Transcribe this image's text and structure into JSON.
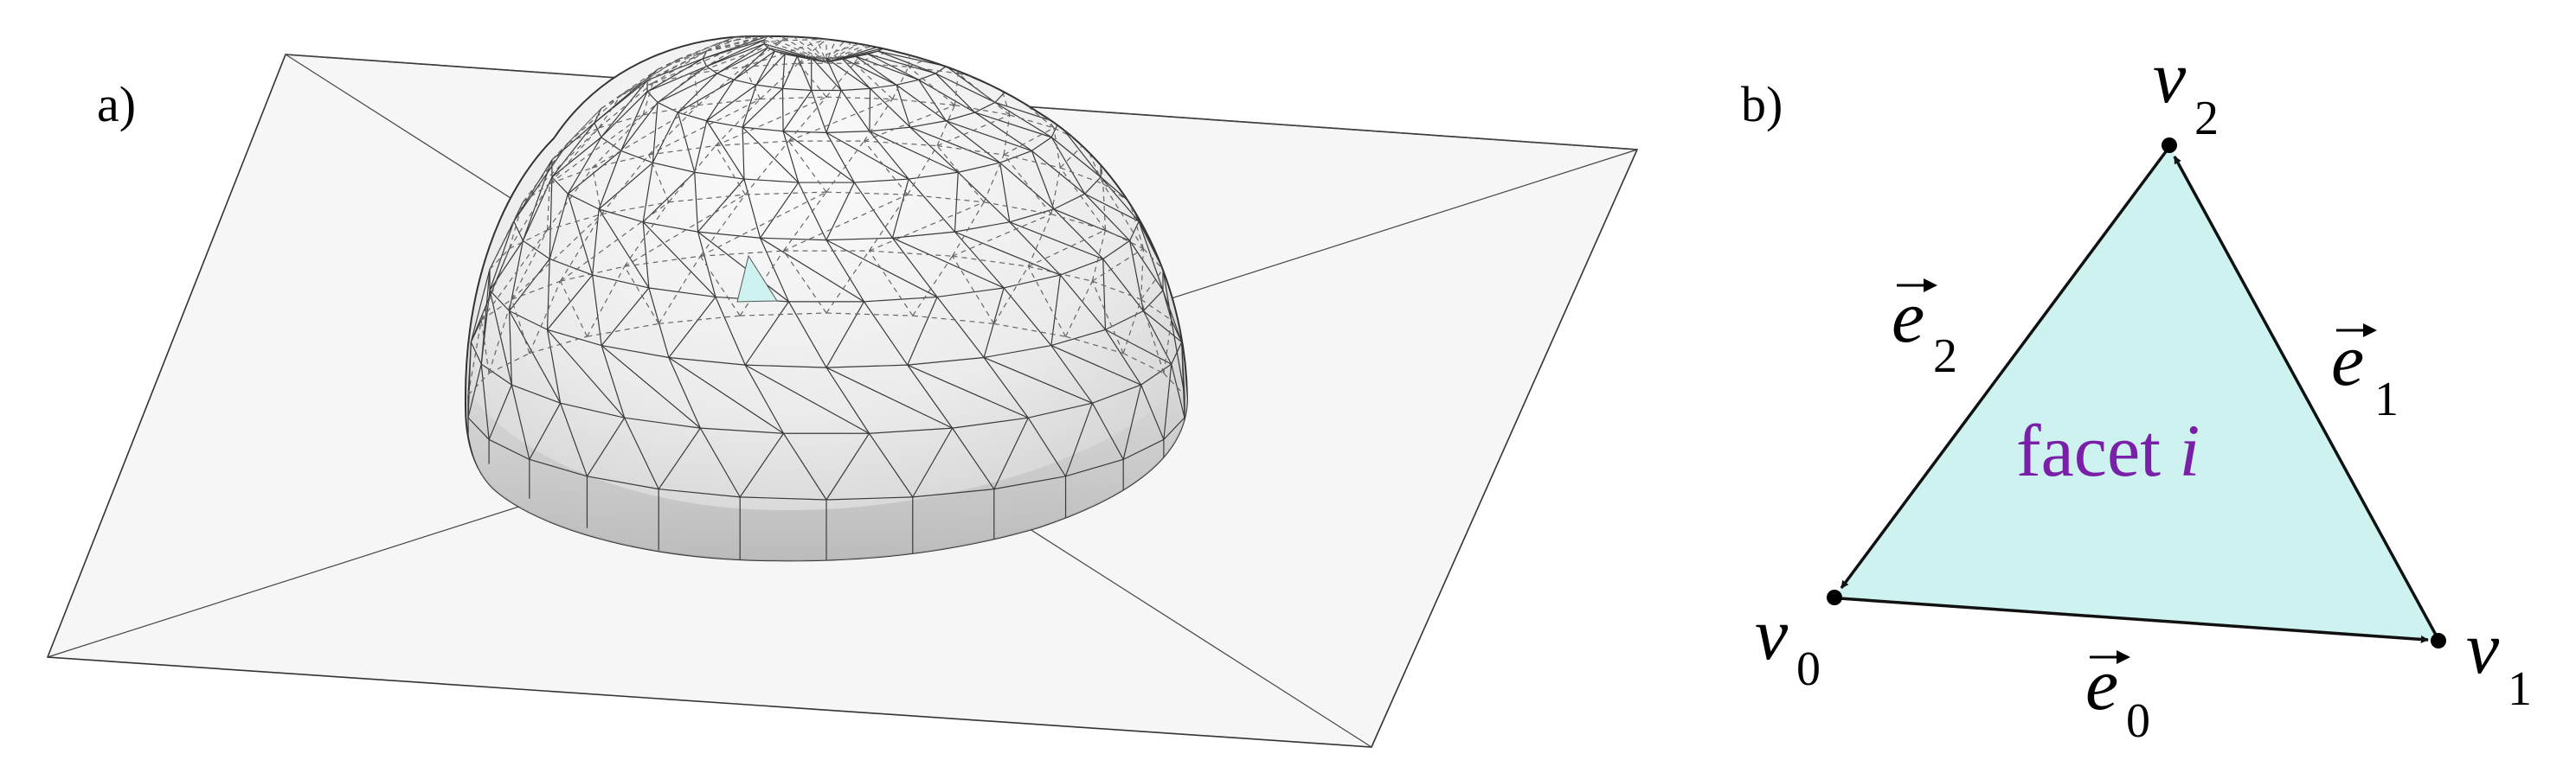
{
  "panels": {
    "a": {
      "label": "a)",
      "highlight_color": "#cdf2ef"
    },
    "b": {
      "label": "b)",
      "fill_color": "#cdf2ef",
      "facet_text": "facet ",
      "facet_index": "i",
      "facet_color": "#7a1fa8",
      "vertices": [
        {
          "symbol": "v",
          "subscript": "0"
        },
        {
          "symbol": "v",
          "subscript": "1"
        },
        {
          "symbol": "v",
          "subscript": "2"
        }
      ],
      "edges": [
        {
          "symbol": "e",
          "subscript": "0"
        },
        {
          "symbol": "e",
          "subscript": "1"
        },
        {
          "symbol": "e",
          "subscript": "2"
        }
      ]
    }
  }
}
